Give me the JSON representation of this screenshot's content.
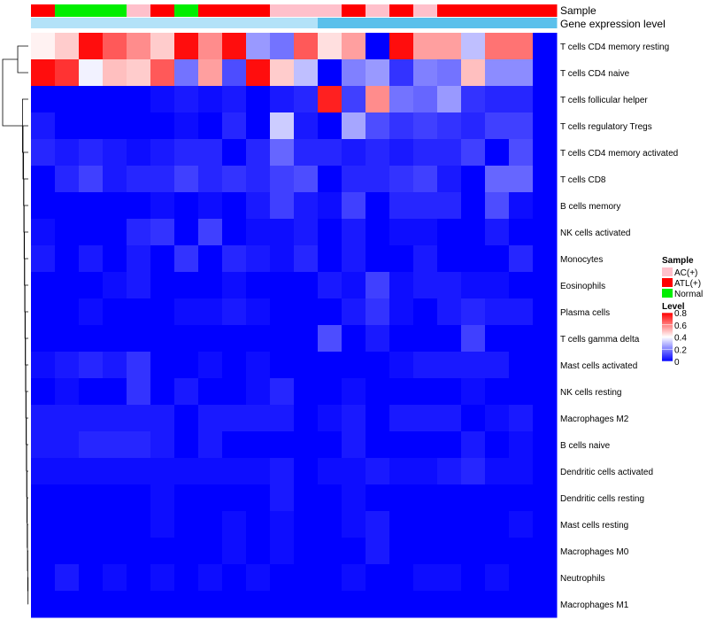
{
  "chart_data": {
    "type": "heatmap",
    "annotation_tracks": [
      {
        "name": "Sample",
        "values": [
          "ATL(+)",
          "Normal",
          "Normal",
          "Normal",
          "AC(+)",
          "ATL(+)",
          "Normal",
          "ATL(+)",
          "ATL(+)",
          "ATL(+)",
          "AC(+)",
          "AC(+)",
          "AC(+)",
          "ATL(+)",
          "AC(+)",
          "ATL(+)",
          "AC(+)",
          "ATL(+)",
          "ATL(+)",
          "ATL(+)",
          "ATL(+)",
          "ATL(+)"
        ]
      },
      {
        "name": "Gene expression level",
        "values": [
          "low",
          "low",
          "low",
          "low",
          "low",
          "low",
          "low",
          "low",
          "low",
          "low",
          "low",
          "low",
          "high",
          "high",
          "high",
          "high",
          "high",
          "high",
          "high",
          "high",
          "high",
          "high"
        ]
      }
    ],
    "rows": [
      "T cells CD4 memory resting",
      "T cells CD4 naive",
      "T cells follicular helper",
      "T cells regulatory  Tregs",
      "T cells CD4 memory activated",
      "T cells CD8",
      "B cells memory",
      "NK cells activated",
      "Monocytes",
      "Eosinophils",
      "Plasma cells",
      "T cells gamma delta",
      "Mast cells activated",
      "NK cells resting",
      "Macrophages M2",
      "B cells naive",
      "Dendritic cells activated",
      "Dendritic cells resting",
      "Mast cells resting",
      "Macrophages M0",
      "Neutrophils",
      "Macrophages M1"
    ],
    "values": [
      [
        0.42,
        0.48,
        0.78,
        0.66,
        0.58,
        0.48,
        0.78,
        0.58,
        0.78,
        0.24,
        0.18,
        0.66,
        0.45,
        0.55,
        0.0,
        0.78,
        0.55,
        0.55,
        0.3,
        0.62,
        0.62,
        0.0
      ],
      [
        0.78,
        0.72,
        0.38,
        0.5,
        0.48,
        0.66,
        0.18,
        0.55,
        0.12,
        0.78,
        0.48,
        0.3,
        0.0,
        0.2,
        0.24,
        0.08,
        0.2,
        0.18,
        0.5,
        0.22,
        0.22,
        0.0
      ],
      [
        0.0,
        0.0,
        0.0,
        0.0,
        0.0,
        0.02,
        0.04,
        0.02,
        0.04,
        0.0,
        0.04,
        0.06,
        0.75,
        0.1,
        0.58,
        0.18,
        0.16,
        0.24,
        0.08,
        0.06,
        0.06,
        0.0
      ],
      [
        0.04,
        0.0,
        0.0,
        0.0,
        0.0,
        0.0,
        0.02,
        0.0,
        0.06,
        0.0,
        0.32,
        0.04,
        0.0,
        0.26,
        0.12,
        0.08,
        0.1,
        0.08,
        0.06,
        0.1,
        0.1,
        0.0
      ],
      [
        0.06,
        0.04,
        0.06,
        0.04,
        0.02,
        0.04,
        0.06,
        0.06,
        0.0,
        0.06,
        0.16,
        0.06,
        0.06,
        0.04,
        0.06,
        0.04,
        0.06,
        0.06,
        0.1,
        0.0,
        0.12,
        0.0
      ],
      [
        0.0,
        0.06,
        0.1,
        0.04,
        0.06,
        0.06,
        0.1,
        0.06,
        0.08,
        0.06,
        0.1,
        0.12,
        0.0,
        0.06,
        0.06,
        0.08,
        0.1,
        0.04,
        0.0,
        0.16,
        0.16,
        0.0
      ],
      [
        0.0,
        0.0,
        0.0,
        0.0,
        0.0,
        0.02,
        0.0,
        0.02,
        0.0,
        0.04,
        0.1,
        0.04,
        0.02,
        0.1,
        0.0,
        0.06,
        0.06,
        0.06,
        0.0,
        0.12,
        0.02,
        0.0
      ],
      [
        0.02,
        0.0,
        0.0,
        0.0,
        0.06,
        0.08,
        0.0,
        0.1,
        0.0,
        0.02,
        0.02,
        0.04,
        0.0,
        0.04,
        0.0,
        0.02,
        0.02,
        0.0,
        0.0,
        0.04,
        0.0,
        0.0
      ],
      [
        0.04,
        0.0,
        0.04,
        0.0,
        0.04,
        0.0,
        0.08,
        0.0,
        0.06,
        0.04,
        0.02,
        0.06,
        0.0,
        0.04,
        0.0,
        0.0,
        0.04,
        0.0,
        0.0,
        0.0,
        0.06,
        0.0
      ],
      [
        0.0,
        0.0,
        0.0,
        0.02,
        0.04,
        0.0,
        0.0,
        0.0,
        0.02,
        0.0,
        0.0,
        0.0,
        0.04,
        0.02,
        0.1,
        0.02,
        0.04,
        0.04,
        0.02,
        0.02,
        0.0,
        0.0
      ],
      [
        0.0,
        0.0,
        0.02,
        0.0,
        0.0,
        0.0,
        0.02,
        0.02,
        0.04,
        0.02,
        0.0,
        0.0,
        0.0,
        0.04,
        0.08,
        0.02,
        0.0,
        0.04,
        0.06,
        0.04,
        0.04,
        0.0
      ],
      [
        0.0,
        0.0,
        0.0,
        0.0,
        0.0,
        0.0,
        0.0,
        0.0,
        0.0,
        0.0,
        0.0,
        0.0,
        0.12,
        0.0,
        0.04,
        0.0,
        0.0,
        0.0,
        0.1,
        0.0,
        0.0,
        0.0
      ],
      [
        0.02,
        0.04,
        0.06,
        0.04,
        0.08,
        0.0,
        0.0,
        0.02,
        0.0,
        0.02,
        0.0,
        0.0,
        0.0,
        0.0,
        0.0,
        0.02,
        0.04,
        0.04,
        0.04,
        0.04,
        0.0,
        0.0
      ],
      [
        0.0,
        0.02,
        0.0,
        0.0,
        0.08,
        0.0,
        0.04,
        0.0,
        0.0,
        0.02,
        0.06,
        0.0,
        0.0,
        0.02,
        0.0,
        0.0,
        0.0,
        0.0,
        0.02,
        0.0,
        0.0,
        0.0
      ],
      [
        0.04,
        0.04,
        0.04,
        0.04,
        0.04,
        0.04,
        0.0,
        0.04,
        0.04,
        0.04,
        0.04,
        0.0,
        0.02,
        0.04,
        0.0,
        0.04,
        0.04,
        0.04,
        0.0,
        0.02,
        0.04,
        0.0
      ],
      [
        0.04,
        0.04,
        0.06,
        0.06,
        0.06,
        0.04,
        0.0,
        0.04,
        0.0,
        0.0,
        0.0,
        0.0,
        0.0,
        0.04,
        0.0,
        0.0,
        0.0,
        0.0,
        0.04,
        0.0,
        0.02,
        0.0
      ],
      [
        0.02,
        0.02,
        0.02,
        0.02,
        0.02,
        0.02,
        0.02,
        0.02,
        0.02,
        0.02,
        0.04,
        0.0,
        0.02,
        0.02,
        0.04,
        0.02,
        0.02,
        0.04,
        0.06,
        0.02,
        0.02,
        0.0
      ],
      [
        0.0,
        0.0,
        0.0,
        0.0,
        0.0,
        0.02,
        0.0,
        0.0,
        0.0,
        0.0,
        0.04,
        0.0,
        0.0,
        0.02,
        0.0,
        0.0,
        0.0,
        0.0,
        0.0,
        0.0,
        0.0,
        0.0
      ],
      [
        0.0,
        0.0,
        0.0,
        0.0,
        0.0,
        0.02,
        0.0,
        0.0,
        0.02,
        0.0,
        0.02,
        0.0,
        0.0,
        0.02,
        0.04,
        0.0,
        0.0,
        0.0,
        0.0,
        0.0,
        0.02,
        0.0
      ],
      [
        0.0,
        0.0,
        0.0,
        0.0,
        0.0,
        0.0,
        0.0,
        0.0,
        0.02,
        0.0,
        0.02,
        0.0,
        0.0,
        0.0,
        0.04,
        0.0,
        0.0,
        0.0,
        0.0,
        0.0,
        0.0,
        0.0
      ],
      [
        0.0,
        0.04,
        0.0,
        0.02,
        0.0,
        0.02,
        0.0,
        0.02,
        0.0,
        0.02,
        0.0,
        0.0,
        0.0,
        0.02,
        0.0,
        0.0,
        0.02,
        0.02,
        0.0,
        0.02,
        0.0,
        0.0
      ],
      [
        0.0,
        0.0,
        0.0,
        0.0,
        0.0,
        0.0,
        0.0,
        0.0,
        0.0,
        0.0,
        0.0,
        0.0,
        0.0,
        0.0,
        0.0,
        0.0,
        0.0,
        0.0,
        0.0,
        0.0,
        0.0,
        0.0
      ]
    ],
    "dendrogram": {
      "leaves": 22,
      "merges": [
        [
          -21,
          -22,
          0.01
        ],
        [
          -20,
          1,
          0.02
        ],
        [
          -19,
          2,
          0.03
        ],
        [
          -18,
          3,
          0.04
        ],
        [
          -17,
          4,
          0.05
        ],
        [
          -16,
          5,
          0.06
        ],
        [
          -15,
          6,
          0.07
        ],
        [
          -14,
          7,
          0.08
        ],
        [
          -13,
          8,
          0.09
        ],
        [
          -12,
          9,
          0.1
        ],
        [
          -11,
          10,
          0.11
        ],
        [
          -10,
          11,
          0.12
        ],
        [
          -9,
          12,
          0.13
        ],
        [
          -8,
          13,
          0.14
        ],
        [
          -7,
          14,
          0.15
        ],
        [
          -6,
          15,
          0.16
        ],
        [
          -5,
          16,
          0.17
        ],
        [
          -4,
          17,
          0.19
        ],
        [
          -3,
          18,
          0.21
        ],
        [
          -1,
          -2,
          0.38
        ],
        [
          20,
          19,
          0.92
        ]
      ]
    },
    "legends": [
      {
        "title": "Sample",
        "entries": [
          {
            "label": "AC(+)",
            "color": "#FFC0CB"
          },
          {
            "label": "ATL(+)",
            "color": "#FF0000"
          },
          {
            "label": "Normal",
            "color": "#00EE00"
          }
        ]
      },
      {
        "title": "Level",
        "min": 0,
        "max": 0.8,
        "ticks": [
          "0.8",
          "0.6",
          "0.4",
          "0.2",
          "0"
        ],
        "tick_values": [
          0.8,
          0.6,
          0.4,
          0.2,
          0
        ]
      }
    ],
    "colors": {
      "low": "#0000FF",
      "mid": "#FFFFFF",
      "high": "#FF0000",
      "expr_low": "#B3E2F8",
      "expr_high": "#5BC0EB"
    }
  }
}
